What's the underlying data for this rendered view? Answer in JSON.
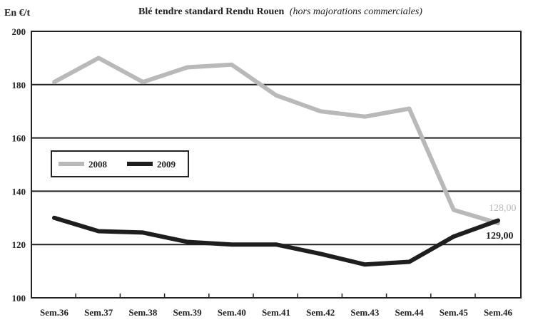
{
  "chart_data": {
    "type": "line",
    "title": "Blé tendre standard Rendu Rouen",
    "subtitle": "(hors majorations commerciales)",
    "ylabel": "En €/t",
    "xlabel": "",
    "categories": [
      "Sem.36",
      "Sem.37",
      "Sem.38",
      "Sem.39",
      "Sem.40",
      "Sem.41",
      "Sem.42",
      "Sem.43",
      "Sem.44",
      "Sem.45",
      "Sem.46"
    ],
    "ylim": [
      100,
      200
    ],
    "yticks": [
      "100",
      "120",
      "140",
      "160",
      "180",
      "200"
    ],
    "grid": true,
    "legend_position": "left-middle",
    "series": [
      {
        "name": "2008",
        "color": "#b9b9b9",
        "values": [
          181,
          190,
          181,
          186.5,
          187.5,
          176,
          170,
          168,
          171,
          133,
          128
        ]
      },
      {
        "name": "2009",
        "color": "#1e1e1e",
        "values": [
          130,
          125,
          124.5,
          121,
          120,
          120,
          116.5,
          112.5,
          113.5,
          123,
          129
        ]
      }
    ],
    "annotations": [
      {
        "text": "128,00",
        "series": "2008"
      },
      {
        "text": "129,00",
        "series": "2009"
      }
    ]
  }
}
